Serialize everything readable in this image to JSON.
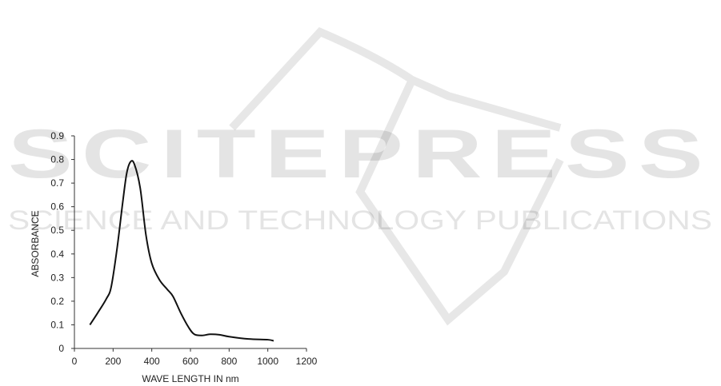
{
  "watermark": {
    "title": "SCITEPRESS",
    "subtitle": "SCIENCE AND TECHNOLOGY PUBLICATIONS"
  },
  "chart_data": {
    "type": "line",
    "title": "",
    "xlabel": "WAVE LENGTH IN nm",
    "ylabel": "ABSORBANCE",
    "xlim": [
      0,
      1200
    ],
    "ylim": [
      0,
      0.9
    ],
    "xticks": [
      "0",
      "200",
      "400",
      "600",
      "800",
      "1000",
      "1200"
    ],
    "yticks": [
      "0",
      "0.1",
      "0.2",
      "0.3",
      "0.4",
      "0.5",
      "0.6",
      "0.7",
      "0.8",
      "0.9"
    ],
    "grid": false,
    "legend": "none",
    "line_color": "#111111",
    "series": [
      {
        "x": [
          80,
          120,
          165,
          190,
          220,
          250,
          270,
          290,
          310,
          340,
          370,
          400,
          440,
          480,
          510,
          550,
          590,
          620,
          660,
          700,
          750,
          800,
          900,
          1000,
          1030
        ],
        "y": [
          0.1,
          0.15,
          0.21,
          0.26,
          0.42,
          0.62,
          0.74,
          0.79,
          0.78,
          0.68,
          0.48,
          0.36,
          0.29,
          0.25,
          0.22,
          0.15,
          0.09,
          0.06,
          0.055,
          0.06,
          0.058,
          0.05,
          0.04,
          0.037,
          0.032
        ]
      }
    ]
  }
}
